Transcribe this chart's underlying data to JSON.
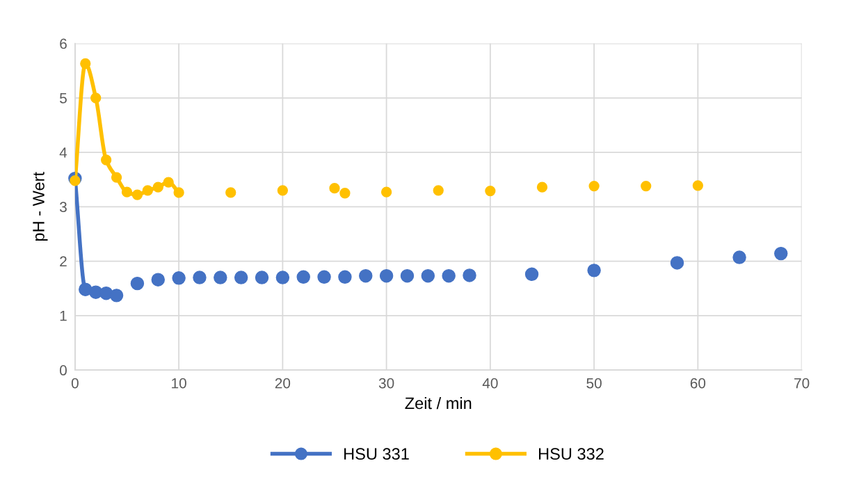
{
  "chart_data": {
    "type": "line",
    "xlabel": "Zeit / min",
    "ylabel": "pH - Wert",
    "xlim": [
      0,
      70
    ],
    "xticks": [
      0,
      10,
      20,
      30,
      40,
      50,
      60,
      70
    ],
    "ylim": [
      0,
      6
    ],
    "yticks": [
      0,
      1,
      2,
      3,
      4,
      5,
      6
    ],
    "grid": true,
    "legend": "bottom",
    "marker": "circle",
    "line_style": "solid",
    "series": [
      {
        "name": "HSU 331",
        "color": "#4472c4",
        "x": [
          0,
          1,
          2,
          3,
          4,
          5,
          6,
          7,
          8,
          9,
          10,
          11,
          12,
          13,
          14,
          15,
          16,
          17,
          18,
          19,
          20,
          21,
          22,
          23,
          24,
          25,
          26,
          27,
          28,
          29,
          30,
          31,
          32,
          33,
          34,
          35,
          36,
          37,
          38,
          41,
          44,
          47,
          50,
          54,
          58,
          61,
          64,
          66,
          68
        ],
        "values": [
          3.52,
          1.48,
          1.43,
          1.41,
          1.37,
          null,
          1.59,
          null,
          1.66,
          null,
          1.69,
          null,
          1.7,
          null,
          1.7,
          null,
          1.7,
          null,
          1.7,
          null,
          1.7,
          null,
          1.71,
          null,
          1.71,
          null,
          1.71,
          null,
          1.73,
          null,
          1.73,
          null,
          1.73,
          null,
          1.73,
          null,
          1.73,
          null,
          1.74,
          null,
          1.76,
          null,
          1.83,
          null,
          1.97,
          null,
          2.07,
          null,
          2.14
        ]
      },
      {
        "name": "HSU 332",
        "color": "#ffc000",
        "x": [
          0,
          1,
          2,
          3,
          4,
          5,
          6,
          7,
          8,
          9,
          10,
          12,
          15,
          17,
          20,
          22,
          25,
          25.5,
          26,
          28,
          30,
          32,
          35,
          37,
          40,
          42,
          45,
          47,
          50,
          52,
          55,
          57,
          60
        ],
        "values": [
          3.48,
          5.63,
          5.0,
          3.86,
          3.54,
          3.27,
          3.22,
          3.3,
          3.36,
          3.45,
          3.26,
          null,
          3.26,
          null,
          3.3,
          null,
          3.34,
          null,
          3.25,
          null,
          3.27,
          null,
          3.3,
          null,
          3.29,
          null,
          3.36,
          null,
          3.38,
          null,
          3.38,
          null,
          3.39
        ]
      }
    ]
  }
}
